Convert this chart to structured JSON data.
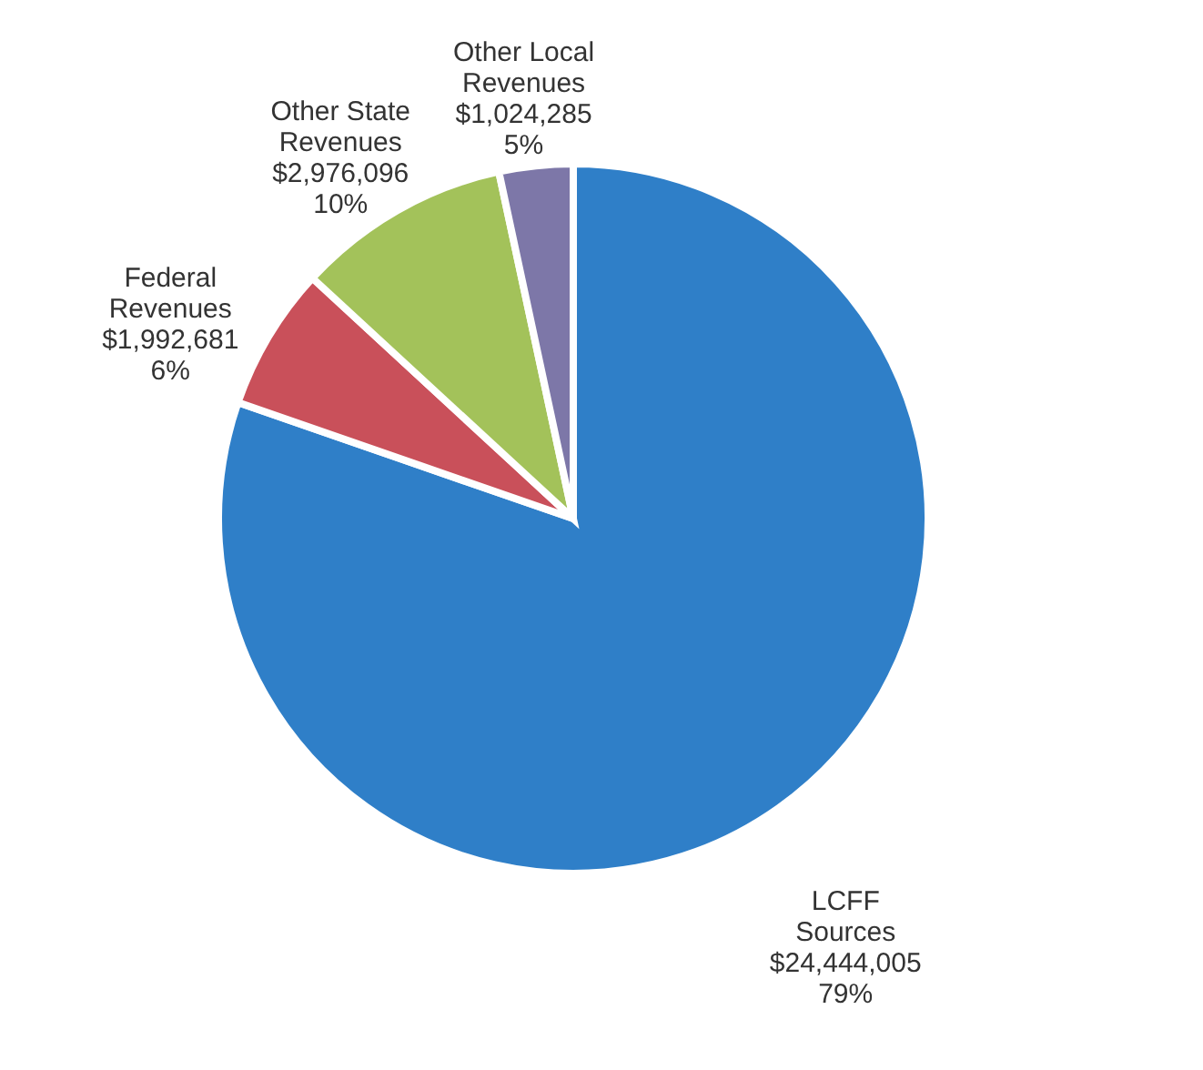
{
  "chart_data": {
    "type": "pie",
    "categories": [
      "LCFF Sources",
      "Federal Revenues",
      "Other State Revenues",
      "Other Local Revenues"
    ],
    "values": [
      24444005,
      1992681,
      2976096,
      1024285
    ],
    "colors": [
      "#2f7fc8",
      "#c9505a",
      "#a3c25a",
      "#7d77a8"
    ],
    "value_labels": [
      "$24,444,005 79%",
      "$1,992,681 6%",
      "$2,976,096 10%",
      "$1,024,285 5%"
    ]
  }
}
